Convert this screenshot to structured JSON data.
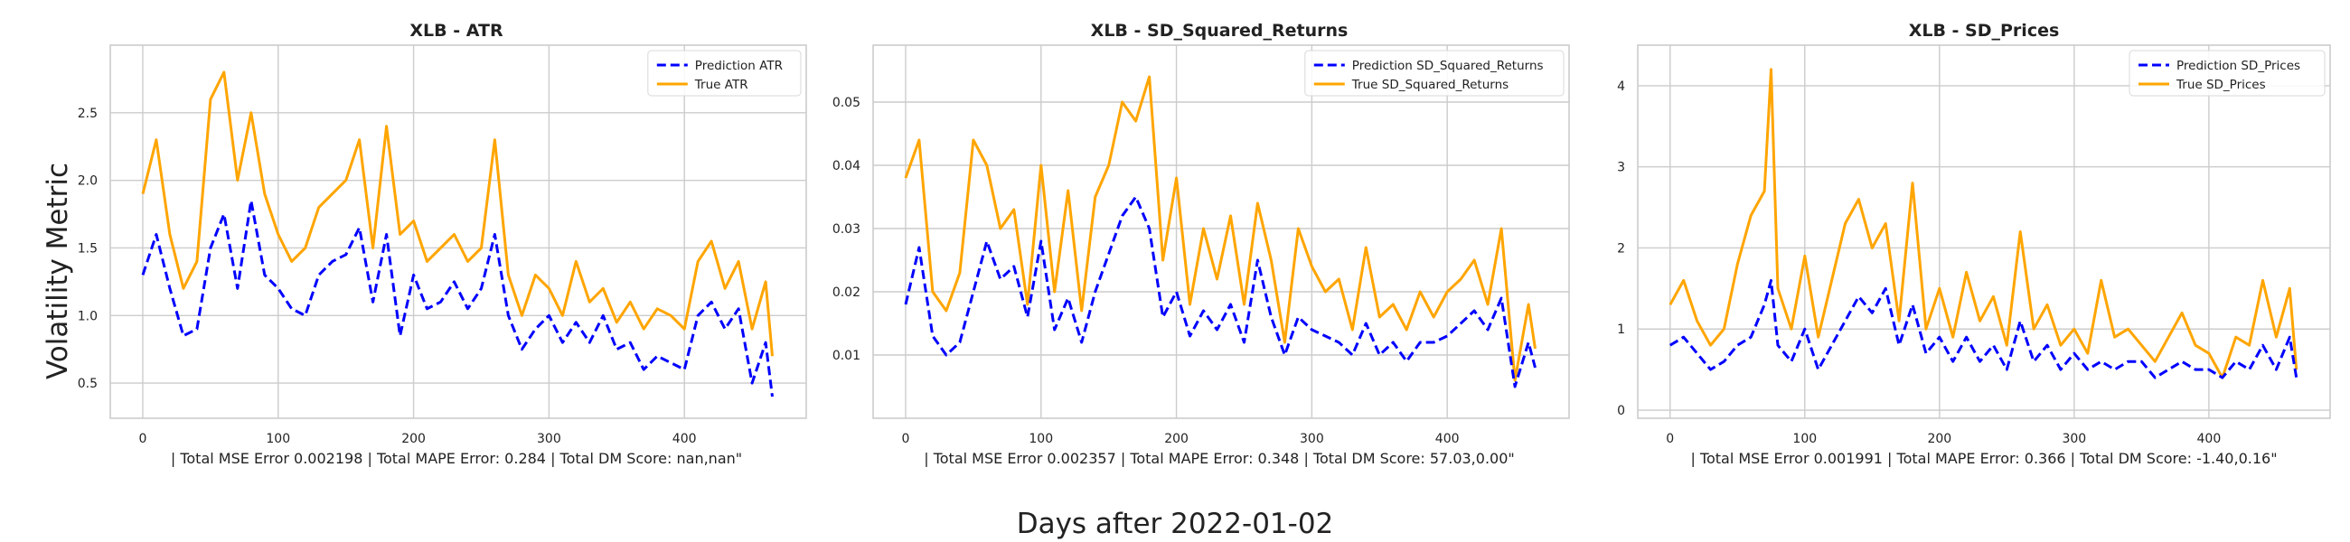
{
  "figure": {
    "ylabel": "Volatility Metric",
    "xlabel": "Days after 2022-01-02"
  },
  "colors": {
    "prediction": "#0000ff",
    "true": "#ffa500",
    "grid": "#cccccc",
    "frame": "#cccccc"
  },
  "chart_data": [
    {
      "type": "line",
      "title": "XLB - ATR",
      "xlabel": "| Total MSE Error 0.002198 | Total MAPE Error: 0.284 | Total DM Score: nan,nan\"",
      "ylabel": "",
      "grid": true,
      "legend": "top-right",
      "xlim": [
        -24,
        490
      ],
      "ylim": [
        0.24,
        3.0
      ],
      "xticks": [
        0,
        100,
        200,
        300,
        400
      ],
      "xtick_labels": [
        "0",
        "100",
        "200",
        "300",
        "400"
      ],
      "yticks": [
        0.5,
        1.0,
        1.5,
        2.0,
        2.5
      ],
      "ytick_labels": [
        "0.5",
        "1.0",
        "1.5",
        "2.0",
        "2.5"
      ],
      "x": [
        0,
        10,
        20,
        30,
        40,
        50,
        60,
        70,
        80,
        90,
        100,
        110,
        120,
        130,
        140,
        150,
        160,
        170,
        180,
        190,
        200,
        210,
        220,
        230,
        240,
        250,
        260,
        270,
        280,
        290,
        300,
        310,
        320,
        330,
        340,
        350,
        360,
        370,
        380,
        390,
        400,
        410,
        420,
        430,
        440,
        450,
        460,
        465
      ],
      "series": [
        {
          "name": "Prediction ATR",
          "style": "dashed",
          "color": "#0000ff",
          "values": [
            1.3,
            1.6,
            1.2,
            0.85,
            0.9,
            1.5,
            1.75,
            1.2,
            1.85,
            1.3,
            1.2,
            1.05,
            1.0,
            1.3,
            1.4,
            1.45,
            1.65,
            1.1,
            1.6,
            0.85,
            1.3,
            1.05,
            1.1,
            1.25,
            1.05,
            1.2,
            1.6,
            1.0,
            0.75,
            0.9,
            1.0,
            0.8,
            0.95,
            0.8,
            1.0,
            0.75,
            0.8,
            0.6,
            0.7,
            0.65,
            0.6,
            1.0,
            1.1,
            0.9,
            1.05,
            0.5,
            0.8,
            0.4
          ]
        },
        {
          "name": "True ATR",
          "style": "solid",
          "color": "#ffa500",
          "values": [
            1.9,
            2.3,
            1.6,
            1.2,
            1.4,
            2.6,
            2.8,
            2.0,
            2.5,
            1.9,
            1.6,
            1.4,
            1.5,
            1.8,
            1.9,
            2.0,
            2.3,
            1.5,
            2.4,
            1.6,
            1.7,
            1.4,
            1.5,
            1.6,
            1.4,
            1.5,
            2.3,
            1.3,
            1.0,
            1.3,
            1.2,
            1.0,
            1.4,
            1.1,
            1.2,
            0.95,
            1.1,
            0.9,
            1.05,
            1.0,
            0.9,
            1.4,
            1.55,
            1.2,
            1.4,
            0.9,
            1.25,
            0.7
          ]
        }
      ],
      "annotations": []
    },
    {
      "type": "line",
      "title": "XLB - SD_Squared_Returns",
      "xlabel": "| Total MSE Error 0.002357 | Total MAPE Error: 0.348 | Total DM Score: 57.03,0.00\"",
      "ylabel": "",
      "grid": true,
      "legend": "top-right",
      "xlim": [
        -24,
        490
      ],
      "ylim": [
        0.0,
        0.059
      ],
      "xticks": [
        0,
        100,
        200,
        300,
        400
      ],
      "xtick_labels": [
        "0",
        "100",
        "200",
        "300",
        "400"
      ],
      "yticks": [
        0.01,
        0.02,
        0.03,
        0.04,
        0.05
      ],
      "ytick_labels": [
        "0.01",
        "0.02",
        "0.03",
        "0.04",
        "0.05"
      ],
      "x": [
        0,
        10,
        20,
        30,
        40,
        50,
        60,
        70,
        80,
        90,
        100,
        110,
        120,
        130,
        140,
        150,
        160,
        170,
        180,
        190,
        200,
        210,
        220,
        230,
        240,
        250,
        260,
        270,
        280,
        290,
        300,
        310,
        320,
        330,
        340,
        350,
        360,
        370,
        380,
        390,
        400,
        410,
        420,
        430,
        440,
        450,
        460,
        465
      ],
      "series": [
        {
          "name": "Prediction SD_Squared_Returns",
          "style": "dashed",
          "color": "#0000ff",
          "values": [
            0.018,
            0.027,
            0.013,
            0.01,
            0.012,
            0.02,
            0.028,
            0.022,
            0.024,
            0.016,
            0.028,
            0.014,
            0.019,
            0.012,
            0.02,
            0.026,
            0.032,
            0.035,
            0.03,
            0.016,
            0.02,
            0.013,
            0.017,
            0.014,
            0.018,
            0.012,
            0.025,
            0.016,
            0.01,
            0.016,
            0.014,
            0.013,
            0.012,
            0.01,
            0.015,
            0.01,
            0.012,
            0.009,
            0.012,
            0.012,
            0.013,
            0.015,
            0.017,
            0.014,
            0.019,
            0.005,
            0.012,
            0.008
          ]
        },
        {
          "name": "True SD_Squared_Returns",
          "style": "solid",
          "color": "#ffa500",
          "values": [
            0.038,
            0.044,
            0.02,
            0.017,
            0.023,
            0.044,
            0.04,
            0.03,
            0.033,
            0.018,
            0.04,
            0.02,
            0.036,
            0.017,
            0.035,
            0.04,
            0.05,
            0.047,
            0.054,
            0.025,
            0.038,
            0.018,
            0.03,
            0.022,
            0.032,
            0.018,
            0.034,
            0.025,
            0.012,
            0.03,
            0.024,
            0.02,
            0.022,
            0.014,
            0.027,
            0.016,
            0.018,
            0.014,
            0.02,
            0.016,
            0.02,
            0.022,
            0.025,
            0.018,
            0.03,
            0.006,
            0.018,
            0.011
          ]
        }
      ],
      "annotations": []
    },
    {
      "type": "line",
      "title": "XLB - SD_Prices",
      "xlabel": "| Total MSE Error 0.001991 | Total MAPE Error: 0.366 | Total DM Score: -1.40,0.16\"",
      "ylabel": "",
      "grid": true,
      "legend": "top-right",
      "xlim": [
        -24,
        490
      ],
      "ylim": [
        -0.1,
        4.5
      ],
      "xticks": [
        0,
        100,
        200,
        300,
        400
      ],
      "xtick_labels": [
        "0",
        "100",
        "200",
        "300",
        "400"
      ],
      "yticks": [
        0,
        1,
        2,
        3,
        4
      ],
      "ytick_labels": [
        "0",
        "1",
        "2",
        "3",
        "4"
      ],
      "x": [
        0,
        10,
        20,
        30,
        40,
        50,
        60,
        70,
        75,
        80,
        90,
        100,
        110,
        120,
        130,
        140,
        150,
        160,
        170,
        180,
        190,
        200,
        210,
        220,
        230,
        240,
        250,
        260,
        270,
        280,
        290,
        300,
        310,
        320,
        330,
        340,
        350,
        360,
        370,
        380,
        390,
        400,
        410,
        420,
        430,
        440,
        450,
        460,
        465
      ],
      "series": [
        {
          "name": "Prediction SD_Prices",
          "style": "dashed",
          "color": "#0000ff",
          "values": [
            0.8,
            0.9,
            0.7,
            0.5,
            0.6,
            0.8,
            0.9,
            1.3,
            1.6,
            0.8,
            0.6,
            1.0,
            0.5,
            0.8,
            1.1,
            1.4,
            1.2,
            1.5,
            0.8,
            1.3,
            0.7,
            0.9,
            0.6,
            0.9,
            0.6,
            0.8,
            0.5,
            1.1,
            0.6,
            0.8,
            0.5,
            0.7,
            0.5,
            0.6,
            0.5,
            0.6,
            0.6,
            0.4,
            0.5,
            0.6,
            0.5,
            0.5,
            0.4,
            0.6,
            0.5,
            0.8,
            0.5,
            0.9,
            0.4
          ]
        },
        {
          "name": "True SD_Prices",
          "style": "solid",
          "color": "#ffa500",
          "values": [
            1.3,
            1.6,
            1.1,
            0.8,
            1.0,
            1.8,
            2.4,
            2.7,
            4.2,
            1.5,
            1.0,
            1.9,
            0.9,
            1.6,
            2.3,
            2.6,
            2.0,
            2.3,
            1.1,
            2.8,
            1.0,
            1.5,
            0.9,
            1.7,
            1.1,
            1.4,
            0.8,
            2.2,
            1.0,
            1.3,
            0.8,
            1.0,
            0.7,
            1.6,
            0.9,
            1.0,
            0.8,
            0.6,
            0.9,
            1.2,
            0.8,
            0.7,
            0.4,
            0.9,
            0.8,
            1.6,
            0.9,
            1.5,
            0.5
          ]
        }
      ],
      "annotations": []
    }
  ]
}
